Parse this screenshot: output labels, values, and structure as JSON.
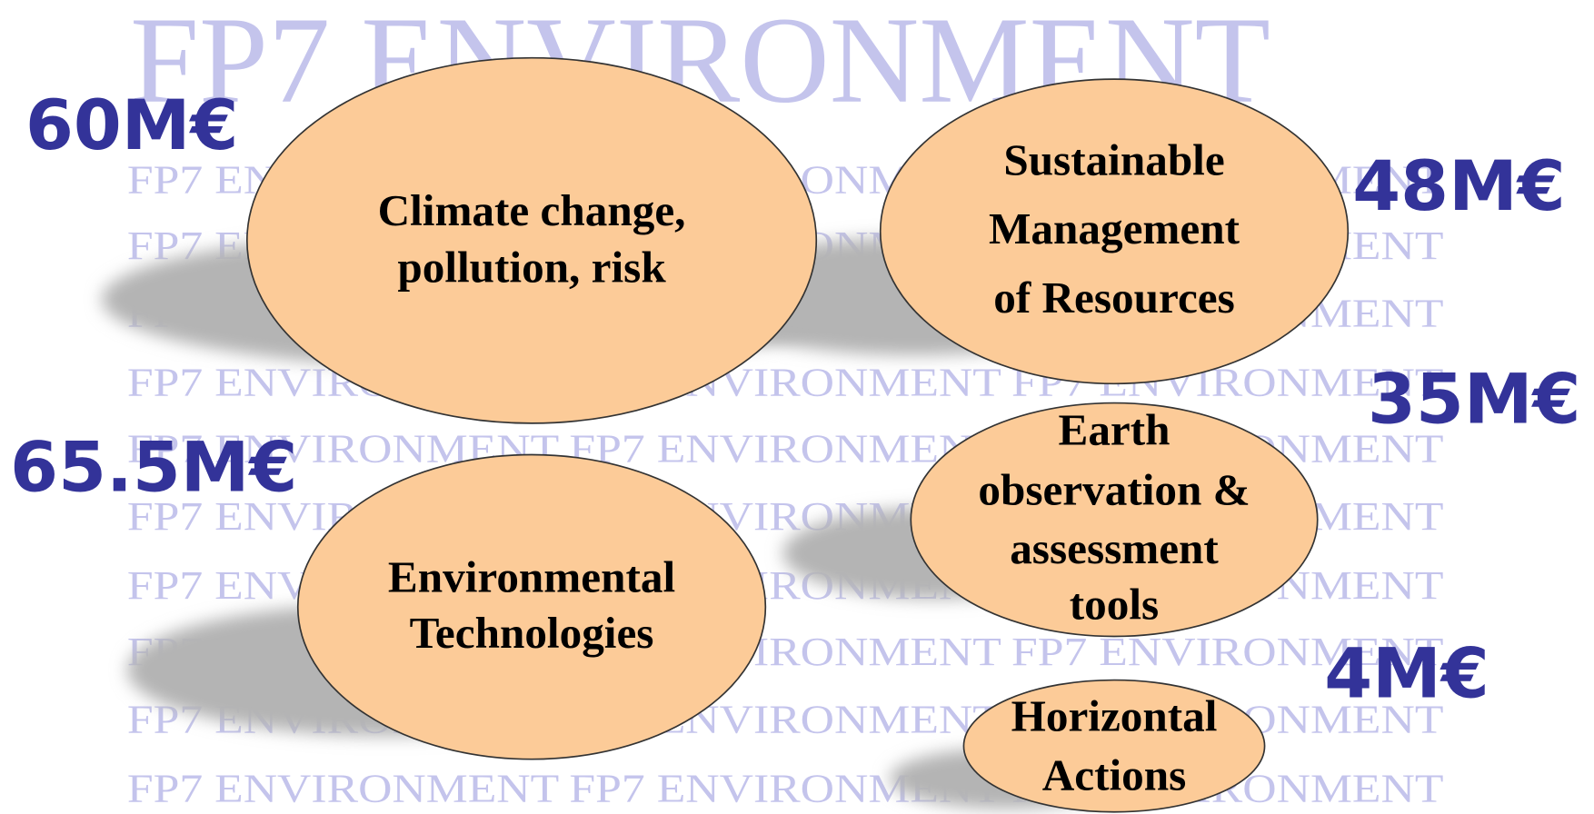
{
  "title": "FP7 ENVIRONMENT",
  "nodes": [
    {
      "label": [
        "Climate change,",
        "pollution, risk"
      ],
      "amount": "60M€"
    },
    {
      "label": [
        "Sustainable",
        "Management",
        "of Resources"
      ],
      "amount": "48M€"
    },
    {
      "label": [
        "Environmental",
        "Technologies"
      ],
      "amount": "65.5M€"
    },
    {
      "label": [
        "Earth",
        "observation &",
        "assessment",
        "tools"
      ],
      "amount": "35M€"
    },
    {
      "label": [
        "Horizontal",
        "Actions"
      ],
      "amount": "4M€"
    }
  ]
}
